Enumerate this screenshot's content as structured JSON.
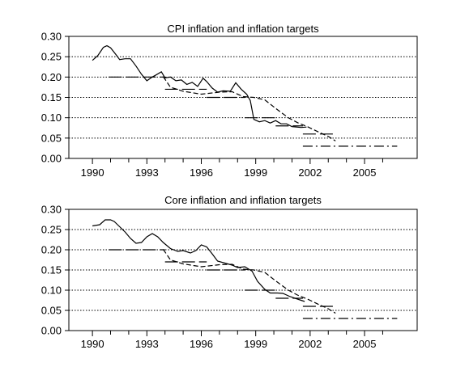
{
  "chart_data": [
    {
      "type": "line",
      "title": "CPI inflation and inflation targets",
      "xlabel": "",
      "ylabel": "",
      "xlim": [
        1988.7,
        2007.9
      ],
      "ylim": [
        0,
        0.3
      ],
      "x_ticks": [
        "1990",
        "1993",
        "1996",
        "1999",
        "2002",
        "2005"
      ],
      "y_ticks": [
        "0.00",
        "0.05",
        "0.10",
        "0.15",
        "0.20",
        "0.25",
        "0.30"
      ],
      "grid": "horizontal-dotted",
      "legend": "none",
      "series": [
        {
          "style": "solid",
          "x": [
            1990.0,
            1990.3,
            1990.6,
            1990.8,
            1991.0,
            1991.3,
            1991.5,
            1991.8,
            1992.1,
            1992.4,
            1992.7,
            1993.0,
            1993.3,
            1993.5,
            1993.8,
            1994.0,
            1994.3,
            1994.6,
            1994.9,
            1995.2,
            1995.5,
            1995.8,
            1996.1,
            1996.3,
            1996.6,
            1996.9,
            1997.2,
            1997.6,
            1997.9,
            1998.2,
            1998.5,
            1998.7,
            1998.9,
            1999.2,
            1999.5,
            1999.8,
            2000.1,
            2000.4,
            2000.7,
            2001.0,
            2001.5,
            2001.8
          ],
          "y": [
            0.241,
            0.253,
            0.273,
            0.277,
            0.272,
            0.255,
            0.243,
            0.245,
            0.245,
            0.227,
            0.207,
            0.191,
            0.2,
            0.205,
            0.213,
            0.198,
            0.2,
            0.191,
            0.193,
            0.182,
            0.187,
            0.177,
            0.197,
            0.189,
            0.173,
            0.163,
            0.166,
            0.165,
            0.186,
            0.17,
            0.158,
            0.142,
            0.096,
            0.09,
            0.093,
            0.087,
            0.093,
            0.085,
            0.085,
            0.078,
            0.076,
            0.077
          ]
        },
        {
          "style": "dashed",
          "x": [
            1993.9,
            1994.3,
            1995.0,
            1996.0,
            1997.0,
            1997.7,
            1998.3,
            1998.9,
            1999.5,
            2000.1,
            2000.8,
            2001.3,
            2001.9,
            2002.5,
            2003.0,
            2003.4
          ],
          "y": [
            0.201,
            0.175,
            0.165,
            0.158,
            0.163,
            0.164,
            0.152,
            0.15,
            0.144,
            0.123,
            0.1,
            0.088,
            0.077,
            0.064,
            0.054,
            0.043
          ]
        },
        {
          "style": "longdash",
          "segments": [
            {
              "x": [
                1990.9,
                1994.0
              ],
              "y": [
                0.2,
                0.2
              ]
            },
            {
              "x": [
                1994.0,
                1996.3
              ],
              "y": [
                0.17,
                0.17
              ]
            },
            {
              "x": [
                1996.3,
                1998.4
              ],
              "y": [
                0.15,
                0.15
              ]
            },
            {
              "x": [
                1998.4,
                2000.1
              ],
              "y": [
                0.1,
                0.1
              ]
            },
            {
              "x": [
                2000.1,
                2001.6
              ],
              "y": [
                0.08,
                0.08
              ]
            },
            {
              "x": [
                2001.6,
                2003.4
              ],
              "y": [
                0.06,
                0.06
              ]
            }
          ]
        },
        {
          "style": "dashdot",
          "segments": [
            {
              "x": [
                2001.6,
                2006.8
              ],
              "y": [
                0.03,
                0.03
              ]
            }
          ]
        }
      ]
    },
    {
      "type": "line",
      "title": "Core inflation and inflation targets",
      "xlabel": "",
      "ylabel": "",
      "xlim": [
        1988.7,
        2007.9
      ],
      "ylim": [
        0,
        0.3
      ],
      "x_ticks": [
        "1990",
        "1993",
        "1996",
        "1999",
        "2002",
        "2005"
      ],
      "y_ticks": [
        "0.00",
        "0.05",
        "0.10",
        "0.15",
        "0.20",
        "0.25",
        "0.30"
      ],
      "grid": "horizontal-dotted",
      "legend": "none",
      "series": [
        {
          "style": "solid",
          "x": [
            1990.0,
            1990.4,
            1990.7,
            1991.0,
            1991.2,
            1991.5,
            1991.8,
            1992.1,
            1992.4,
            1992.7,
            1993.0,
            1993.3,
            1993.6,
            1993.9,
            1994.3,
            1994.7,
            1995.0,
            1995.4,
            1995.7,
            1996.0,
            1996.3,
            1996.6,
            1996.9,
            1997.3,
            1997.7,
            1998.0,
            1998.4,
            1998.8,
            1999.1,
            1999.5,
            1999.8,
            2000.2,
            2000.5,
            2000.9,
            2001.3,
            2001.7
          ],
          "y": [
            0.259,
            0.262,
            0.274,
            0.274,
            0.27,
            0.257,
            0.244,
            0.228,
            0.216,
            0.218,
            0.232,
            0.24,
            0.232,
            0.218,
            0.203,
            0.196,
            0.198,
            0.192,
            0.198,
            0.212,
            0.207,
            0.19,
            0.172,
            0.167,
            0.162,
            0.156,
            0.158,
            0.147,
            0.122,
            0.102,
            0.093,
            0.093,
            0.092,
            0.084,
            0.078,
            0.072
          ]
        },
        {
          "style": "dashed",
          "x": [
            1993.9,
            1994.3,
            1995.0,
            1996.0,
            1997.0,
            1997.7,
            1998.3,
            1998.9,
            1999.5,
            2000.1,
            2000.8,
            2001.3,
            2001.9,
            2002.5,
            2003.0,
            2003.4
          ],
          "y": [
            0.201,
            0.175,
            0.165,
            0.158,
            0.163,
            0.164,
            0.152,
            0.15,
            0.144,
            0.123,
            0.1,
            0.088,
            0.077,
            0.064,
            0.054,
            0.043
          ]
        },
        {
          "style": "longdash",
          "segments": [
            {
              "x": [
                1990.9,
                1994.0
              ],
              "y": [
                0.2,
                0.2
              ]
            },
            {
              "x": [
                1994.0,
                1996.3
              ],
              "y": [
                0.17,
                0.17
              ]
            },
            {
              "x": [
                1996.3,
                1998.4
              ],
              "y": [
                0.15,
                0.15
              ]
            },
            {
              "x": [
                1998.4,
                2000.1
              ],
              "y": [
                0.1,
                0.1
              ]
            },
            {
              "x": [
                2000.1,
                2001.6
              ],
              "y": [
                0.08,
                0.08
              ]
            },
            {
              "x": [
                2001.6,
                2003.4
              ],
              "y": [
                0.06,
                0.06
              ]
            }
          ]
        },
        {
          "style": "dashdot",
          "segments": [
            {
              "x": [
                2001.6,
                2006.8
              ],
              "y": [
                0.03,
                0.03
              ]
            }
          ]
        }
      ]
    }
  ]
}
